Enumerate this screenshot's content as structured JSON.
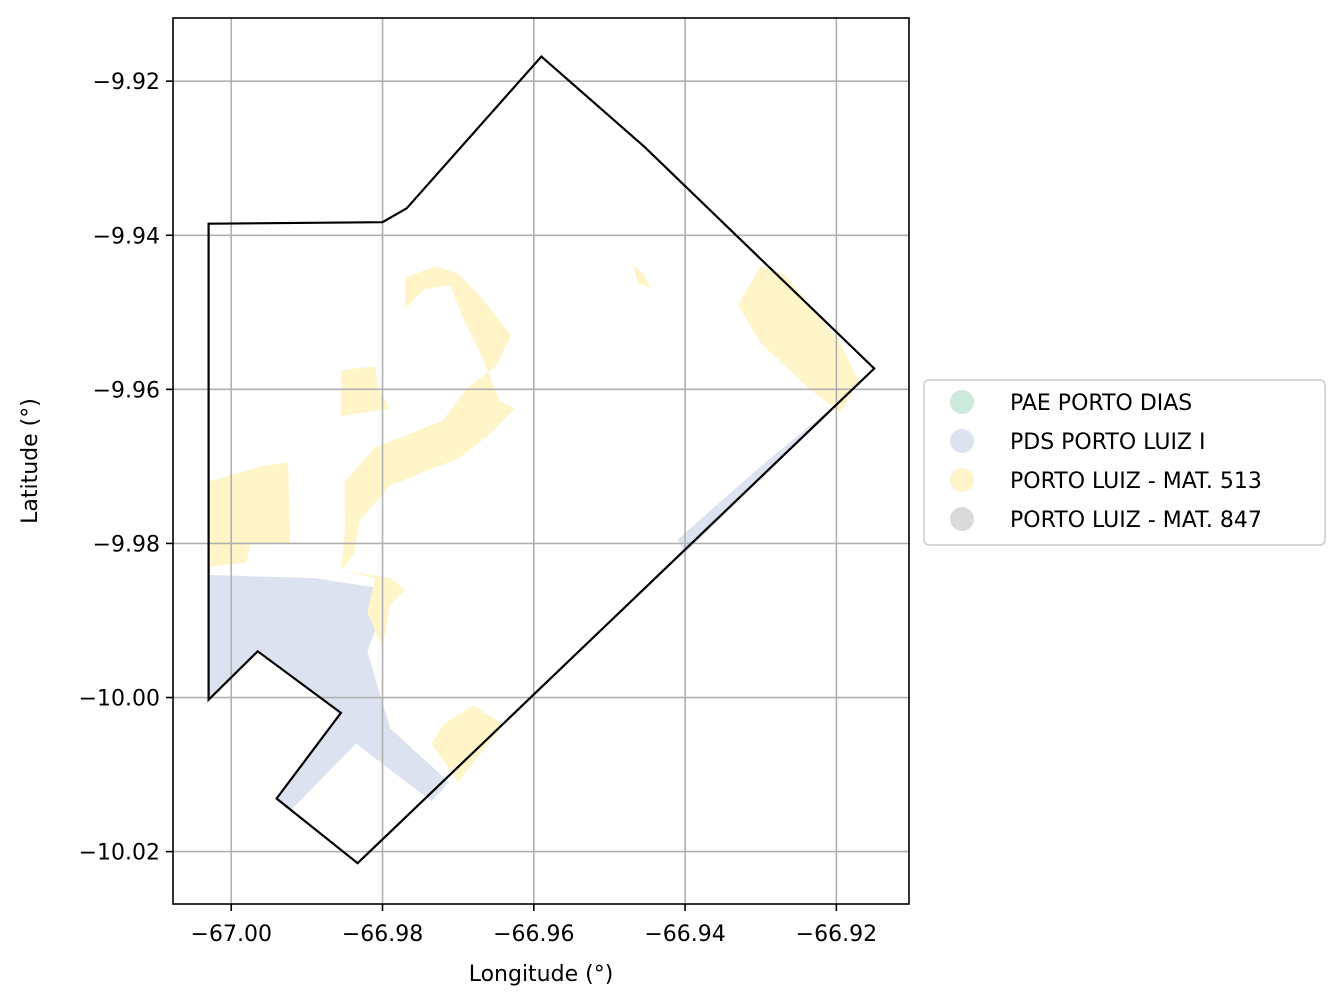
{
  "chart_data": {
    "type": "map",
    "xlabel": "Longitude (°)",
    "ylabel": "Latitude (°)",
    "xlim": [
      -67.0077,
      -66.9104
    ],
    "ylim": [
      -10.0268,
      -9.9118
    ],
    "grid": true,
    "x_ticks": [
      {
        "value": -67.0,
        "label": "−67.00"
      },
      {
        "value": -66.98,
        "label": "−66.98"
      },
      {
        "value": -66.96,
        "label": "−66.96"
      },
      {
        "value": -66.94,
        "label": "−66.94"
      },
      {
        "value": -66.92,
        "label": "−66.92"
      }
    ],
    "y_ticks": [
      {
        "value": -9.92,
        "label": "−9.92"
      },
      {
        "value": -9.94,
        "label": "−9.94"
      },
      {
        "value": -9.96,
        "label": "−9.96"
      },
      {
        "value": -9.98,
        "label": "−9.98"
      },
      {
        "value": -10.0,
        "label": "−10.00"
      },
      {
        "value": -10.02,
        "label": "−10.02"
      }
    ],
    "legend": {
      "placement": "right",
      "entries": [
        {
          "label": "PAE PORTO DIAS",
          "color": "#cde9dc"
        },
        {
          "label": "PDS PORTO LUIZ I",
          "color": "#dde2f0"
        },
        {
          "label": "PORTO LUIZ - MAT. 513",
          "color": "#fff5c8"
        },
        {
          "label": "PORTO LUIZ - MAT. 847",
          "color": "#dadada"
        }
      ]
    },
    "boundary": {
      "name": "",
      "color": "#000000",
      "coords": [
        [
          -67.003,
          -9.9385
        ],
        [
          -66.98,
          -9.9383
        ],
        [
          -66.9768,
          -9.9365
        ],
        [
          -66.959,
          -9.9168
        ],
        [
          -66.9454,
          -9.9285
        ],
        [
          -66.915,
          -9.9573
        ],
        [
          -66.9833,
          -10.0215
        ],
        [
          -66.994,
          -10.0131
        ],
        [
          -66.9855,
          -10.002
        ],
        [
          -66.9965,
          -9.994
        ],
        [
          -67.003,
          -10.0003
        ],
        [
          -67.003,
          -9.9385
        ]
      ]
    },
    "regions": [
      {
        "layer": "PDS PORTO LUIZ I",
        "color": "#dde2f0",
        "coords": [
          [
            -67.003,
            -9.9841
          ],
          [
            -66.989,
            -9.9845
          ],
          [
            -66.979,
            -9.986
          ],
          [
            -66.982,
            -9.994
          ],
          [
            -66.979,
            -10.004
          ],
          [
            -66.9712,
            -10.011
          ],
          [
            -66.9735,
            -10.0135
          ],
          [
            -66.9835,
            -10.006
          ],
          [
            -66.992,
            -10.0145
          ],
          [
            -66.994,
            -10.0131
          ],
          [
            -66.9855,
            -10.002
          ],
          [
            -66.9965,
            -9.994
          ],
          [
            -67.003,
            -10.0003
          ]
        ]
      },
      {
        "layer": "PDS PORTO LUIZ I",
        "color": "#dde2f0",
        "coords": [
          [
            -66.9183,
            -9.9605
          ],
          [
            -66.93,
            -9.97
          ],
          [
            -66.941,
            -9.9795
          ],
          [
            -66.94,
            -9.9812
          ]
        ]
      },
      {
        "layer": "PORTO LUIZ - MAT. 513",
        "color": "#fff5c8",
        "coords": [
          [
            -66.996,
            -9.97
          ],
          [
            -66.9925,
            -9.9695
          ],
          [
            -66.9922,
            -9.98
          ],
          [
            -66.9975,
            -9.9802
          ],
          [
            -66.998,
            -9.9825
          ],
          [
            -67.003,
            -9.983
          ],
          [
            -67.003,
            -9.972
          ]
        ]
      },
      {
        "layer": "PORTO LUIZ - MAT. 513",
        "color": "#fff5c8",
        "coords": [
          [
            -66.9855,
            -9.9575
          ],
          [
            -66.981,
            -9.957
          ],
          [
            -66.9805,
            -9.96
          ],
          [
            -66.979,
            -9.9625
          ],
          [
            -66.9855,
            -9.9635
          ]
        ]
      },
      {
        "layer": "PORTO LUIZ - MAT. 513",
        "color": "#fff5c8",
        "coords": [
          [
            -66.977,
            -9.9495
          ],
          [
            -66.9745,
            -9.947
          ],
          [
            -66.971,
            -9.9465
          ],
          [
            -66.9695,
            -9.9505
          ],
          [
            -66.967,
            -9.9555
          ],
          [
            -66.9645,
            -9.9615
          ],
          [
            -66.9625,
            -9.9625
          ],
          [
            -66.966,
            -9.966
          ],
          [
            -66.97,
            -9.969
          ],
          [
            -66.974,
            -9.9705
          ],
          [
            -66.979,
            -9.9725
          ],
          [
            -66.983,
            -9.977
          ],
          [
            -66.9838,
            -9.9815
          ],
          [
            -66.9855,
            -9.9835
          ],
          [
            -66.979,
            -9.9845
          ],
          [
            -66.977,
            -9.986
          ],
          [
            -66.979,
            -9.988
          ],
          [
            -66.98,
            -9.9935
          ],
          [
            -66.982,
            -9.989
          ],
          [
            -66.981,
            -9.9845
          ],
          [
            -66.9855,
            -9.9835
          ],
          [
            -66.985,
            -9.979
          ],
          [
            -66.985,
            -9.972
          ],
          [
            -66.981,
            -9.9675
          ],
          [
            -66.977,
            -9.966
          ],
          [
            -66.972,
            -9.964
          ],
          [
            -66.969,
            -9.96
          ],
          [
            -66.965,
            -9.957
          ],
          [
            -66.963,
            -9.953
          ],
          [
            -66.967,
            -9.948
          ],
          [
            -66.97,
            -9.945
          ],
          [
            -66.973,
            -9.944
          ],
          [
            -66.977,
            -9.9455
          ]
        ]
      },
      {
        "layer": "PORTO LUIZ - MAT. 513",
        "color": "#fff5c8",
        "coords": [
          [
            -66.968,
            -10.001
          ],
          [
            -66.964,
            -10.0035
          ],
          [
            -66.97,
            -10.011
          ],
          [
            -66.9735,
            -10.006
          ],
          [
            -66.972,
            -10.0035
          ]
        ]
      },
      {
        "layer": "PORTO LUIZ - MAT. 513",
        "color": "#fff5c8",
        "coords": [
          [
            -66.947,
            -9.9437
          ],
          [
            -66.9455,
            -9.945
          ],
          [
            -66.9445,
            -9.9468
          ],
          [
            -66.9462,
            -9.9462
          ]
        ]
      },
      {
        "layer": "PORTO LUIZ - MAT. 513",
        "color": "#fff5c8",
        "coords": [
          [
            -66.93,
            -9.944
          ],
          [
            -66.927,
            -9.945
          ],
          [
            -66.9235,
            -9.949
          ],
          [
            -66.9195,
            -9.954
          ],
          [
            -66.917,
            -9.959
          ],
          [
            -66.9195,
            -9.963
          ],
          [
            -66.9235,
            -9.96
          ],
          [
            -66.93,
            -9.954
          ],
          [
            -66.933,
            -9.949
          ]
        ]
      }
    ]
  }
}
